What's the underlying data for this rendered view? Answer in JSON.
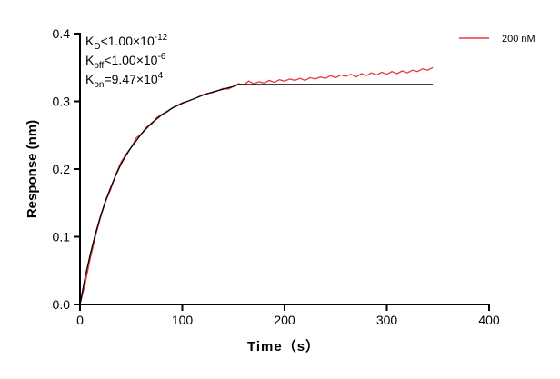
{
  "chart_data": {
    "type": "line",
    "title": "",
    "xlabel": "Time（s）",
    "ylabel": "Response (nm)",
    "xlim": [
      0,
      400
    ],
    "ylim": [
      0,
      0.4
    ],
    "xticks": [
      0,
      100,
      200,
      300,
      400
    ],
    "xtick_labels": [
      "0",
      "100",
      "200",
      "300",
      "400"
    ],
    "yticks": [
      0,
      0.1,
      0.2,
      0.3,
      0.4
    ],
    "ytick_labels": [
      "0.0",
      "0.1",
      "0.2",
      "0.3",
      "0.4"
    ],
    "grid": false,
    "legend_position": "top-right",
    "annotations": [
      {
        "main": "K",
        "sub": "D",
        "rel": "<1.00×10",
        "sup": "-12"
      },
      {
        "main": "K",
        "sub": "off",
        "rel": "<1.00×10",
        "sup": "-6"
      },
      {
        "main": "K",
        "sub": "on",
        "rel": "=9.47×10",
        "sup": "4"
      }
    ],
    "series": [
      {
        "name": "200 nM",
        "color": "#e8383d",
        "x": [
          0,
          5,
          10,
          15,
          20,
          25,
          30,
          35,
          40,
          45,
          50,
          55,
          60,
          65,
          70,
          75,
          80,
          85,
          90,
          95,
          100,
          105,
          110,
          115,
          120,
          125,
          130,
          135,
          140,
          145,
          150,
          155,
          160,
          165,
          170,
          175,
          180,
          185,
          190,
          195,
          200,
          205,
          210,
          215,
          220,
          225,
          230,
          235,
          240,
          245,
          250,
          255,
          260,
          265,
          270,
          275,
          280,
          285,
          290,
          295,
          300,
          305,
          310,
          315,
          320,
          325,
          330,
          335,
          340,
          345
        ],
        "y": [
          0.0,
          0.03,
          0.068,
          0.1,
          0.128,
          0.152,
          0.17,
          0.192,
          0.21,
          0.222,
          0.232,
          0.246,
          0.252,
          0.262,
          0.266,
          0.276,
          0.281,
          0.284,
          0.29,
          0.294,
          0.298,
          0.3,
          0.303,
          0.306,
          0.31,
          0.312,
          0.313,
          0.316,
          0.319,
          0.318,
          0.322,
          0.326,
          0.324,
          0.33,
          0.326,
          0.329,
          0.327,
          0.331,
          0.328,
          0.332,
          0.33,
          0.333,
          0.331,
          0.334,
          0.331,
          0.335,
          0.333,
          0.336,
          0.334,
          0.338,
          0.335,
          0.339,
          0.337,
          0.34,
          0.336,
          0.341,
          0.338,
          0.342,
          0.339,
          0.343,
          0.34,
          0.344,
          0.341,
          0.345,
          0.342,
          0.346,
          0.344,
          0.348,
          0.346,
          0.35
        ]
      },
      {
        "color": "#000000",
        "x": [
          0,
          5,
          10,
          15,
          20,
          25,
          30,
          35,
          40,
          45,
          50,
          60,
          70,
          80,
          90,
          100,
          110,
          120,
          130,
          140,
          150,
          155,
          345
        ],
        "y": [
          0,
          0.04,
          0.074,
          0.104,
          0.13,
          0.153,
          0.173,
          0.191,
          0.207,
          0.22,
          0.232,
          0.252,
          0.268,
          0.28,
          0.29,
          0.297,
          0.303,
          0.309,
          0.314,
          0.318,
          0.322,
          0.325,
          0.325
        ]
      }
    ]
  }
}
